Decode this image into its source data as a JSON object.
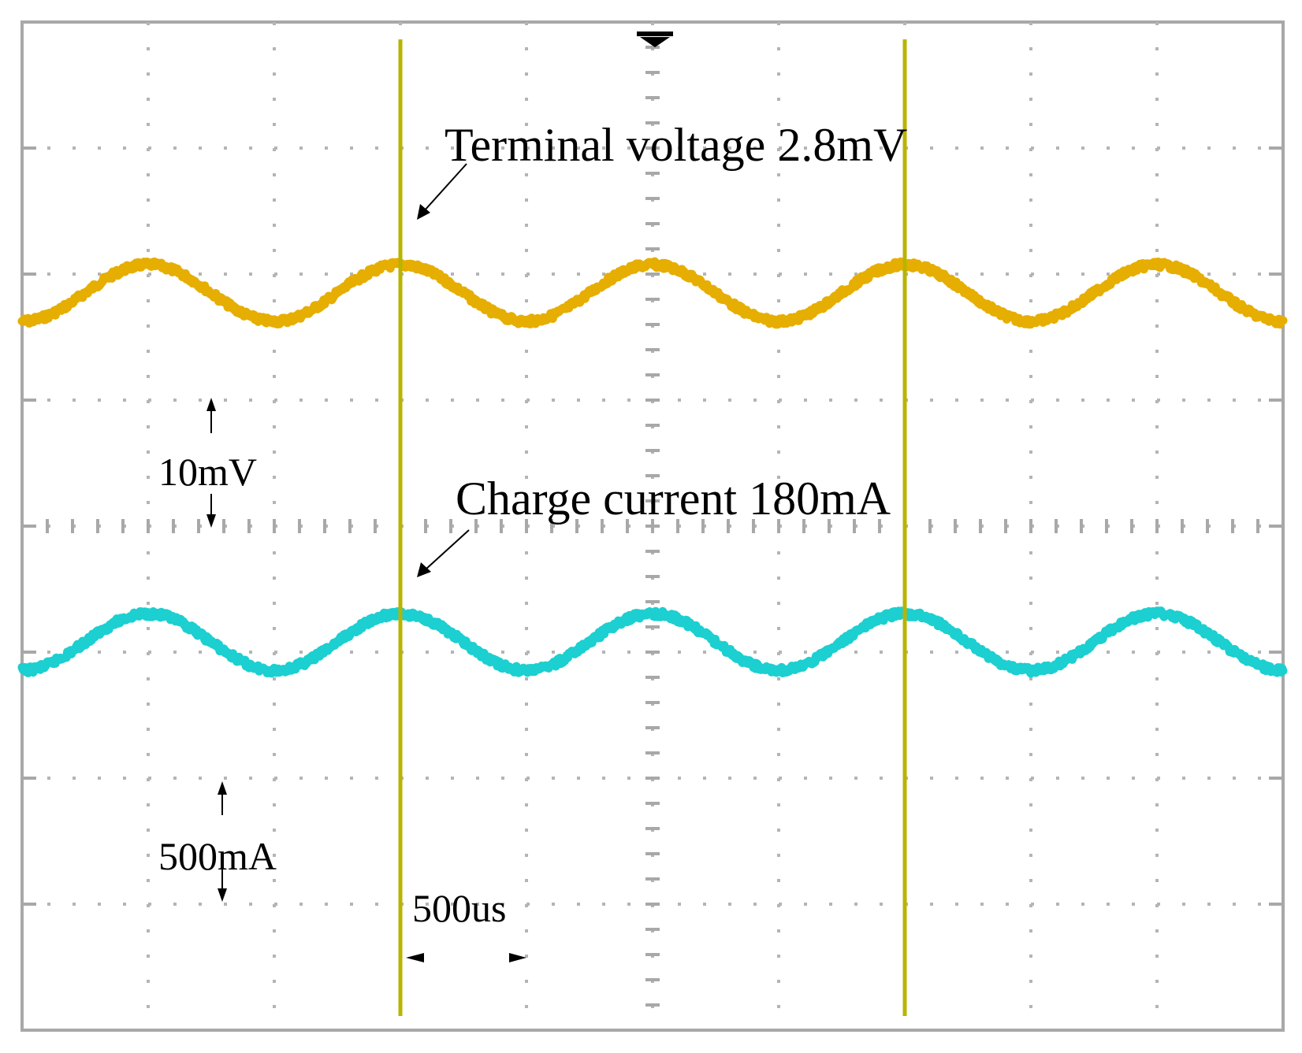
{
  "chart_data": {
    "type": "line",
    "title": "",
    "xlabel": "",
    "ylabel": "",
    "grid": true,
    "grid_divisions": {
      "x": 10,
      "y": 8
    },
    "x_scale": {
      "label": "500us",
      "per_division_us": 500
    },
    "time_range_us": [
      0,
      5000
    ],
    "series": [
      {
        "name": "Terminal voltage 2.8mV",
        "color": "#E6AE00",
        "scale_label": "10mV",
        "volts_per_division_mV": 10,
        "peak_to_peak_mV": 2.8,
        "period_us": 1000,
        "baseline_divisions_from_top": 2.15,
        "x_us": [
          0,
          500,
          1000,
          1500,
          2000,
          2500,
          3000,
          3500,
          4000,
          4500,
          5000
        ],
        "values": [
          -1.4,
          1.4,
          -1.4,
          1.4,
          -1.4,
          1.4,
          -1.4,
          1.4,
          -1.4,
          1.4,
          -1.4
        ]
      },
      {
        "name": "Charge current 180mA",
        "color": "#1CCFD0",
        "scale_label": "500mA",
        "amps_per_division_mA": 500,
        "peak_to_peak_mA": 180,
        "period_us": 1000,
        "baseline_divisions_from_top": 4.92,
        "x_us": [
          0,
          500,
          1000,
          1500,
          2000,
          2500,
          3000,
          3500,
          4000,
          4500,
          5000
        ],
        "values": [
          -90,
          90,
          -90,
          90,
          -90,
          90,
          -90,
          90,
          -90,
          90,
          -90
        ]
      }
    ],
    "cursors": {
      "color": "#B8B400",
      "x_us": [
        1500,
        3500
      ]
    },
    "annotations": [
      {
        "text": "Terminal voltage 2.8mV",
        "target": "Terminal voltage 2.8mV"
      },
      {
        "text": "Charge current 180mA",
        "target": "Charge current 180mA"
      }
    ]
  },
  "labels": {
    "voltage_annotation": "Terminal voltage 2.8mV",
    "current_annotation": "Charge current 180mA",
    "voltage_scale": "10mV",
    "current_scale": "500mA",
    "time_scale": "500us"
  }
}
